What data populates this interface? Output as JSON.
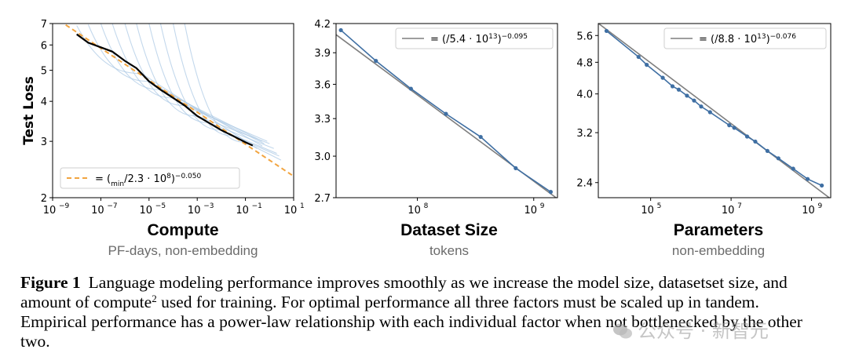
{
  "chart_data": [
    {
      "type": "line",
      "id": "compute",
      "title": "Compute",
      "subtitle": "PF-days, non-embedding",
      "xlabel": "Compute",
      "ylabel": "Test Loss",
      "xscale": "log",
      "yscale": "log",
      "xlim": [
        1e-09,
        10
      ],
      "ylim": [
        2,
        7
      ],
      "x_ticks": [
        1e-09,
        1e-07,
        1e-05,
        0.001,
        0.1,
        10
      ],
      "x_tick_labels": [
        "10",
        "10",
        "10",
        "10",
        "10",
        "10"
      ],
      "x_tick_exponents": [
        "−9",
        "−7",
        "−5",
        "−3",
        "−1",
        "1"
      ],
      "y_ticks": [
        2,
        3,
        4,
        5,
        6,
        7
      ],
      "y_tick_labels": [
        "2",
        "3",
        "4",
        "5",
        "6",
        "7"
      ],
      "legend": "bottom-left",
      "fit": {
        "label_html": "<i>L</i> = (<i>C</i><tspan baseline-shift='sub' font-size='9'>min</tspan>/2.3 · 10<tspan baseline-shift='super' font-size='9'>8</tspan>)<tspan baseline-shift='super' font-size='9'>−0.050</tspan>",
        "scale": 230000000.0,
        "exponent": -0.05,
        "color": "#f2a541"
      },
      "frontier": {
        "color": "#000000",
        "points": [
          [
            1e-08,
            6.48
          ],
          [
            3e-08,
            6.1
          ],
          [
            1e-07,
            5.9
          ],
          [
            3e-07,
            5.72
          ],
          [
            1e-06,
            5.35
          ],
          [
            3e-06,
            5.08
          ],
          [
            1e-05,
            4.62
          ],
          [
            3e-05,
            4.35
          ],
          [
            0.0001,
            4.1
          ],
          [
            0.0003,
            3.88
          ],
          [
            0.001,
            3.6
          ],
          [
            0.003,
            3.43
          ],
          [
            0.01,
            3.25
          ],
          [
            0.03,
            3.12
          ],
          [
            0.1,
            2.98
          ],
          [
            0.2,
            2.91
          ]
        ]
      },
      "curves_color": "#a9c7e4",
      "curves": [
        {
          "start": [
            1e-08,
            6.9
          ],
          "frontier_end": 5e-06,
          "end": [
            0.3,
            2.85
          ]
        },
        {
          "start": [
            3e-08,
            6.95
          ],
          "frontier_end": 1e-05,
          "end": [
            0.5,
            2.9
          ]
        },
        {
          "start": [
            1e-07,
            7.0
          ],
          "frontier_end": 3e-05,
          "end": [
            0.5,
            3.0
          ]
        },
        {
          "start": [
            3e-07,
            7.0
          ],
          "frontier_end": 0.0001,
          "end": [
            0.6,
            2.95
          ]
        },
        {
          "start": [
            1e-06,
            7.0
          ],
          "frontier_end": 0.0003,
          "end": [
            0.8,
            3.0
          ]
        },
        {
          "start": [
            3e-06,
            7.0
          ],
          "frontier_end": 0.001,
          "end": [
            1.0,
            2.95
          ]
        },
        {
          "start": [
            1e-05,
            7.0
          ],
          "frontier_end": 0.003,
          "end": [
            1.5,
            2.85
          ]
        },
        {
          "start": [
            3e-05,
            7.0
          ],
          "frontier_end": 0.01,
          "end": [
            2.0,
            2.75
          ]
        },
        {
          "start": [
            0.0001,
            7.0
          ],
          "frontier_end": 0.03,
          "end": [
            2.5,
            2.7
          ]
        },
        {
          "start": [
            0.0003,
            7.0
          ],
          "frontier_end": 0.1,
          "end": [
            3.0,
            2.62
          ]
        }
      ]
    },
    {
      "type": "line",
      "id": "dataset",
      "title": "Dataset Size",
      "subtitle": "tokens",
      "xscale": "log",
      "yscale": "log",
      "xlim": [
        20000000.0,
        1600000000.0
      ],
      "ylim": [
        2.7,
        4.2
      ],
      "x_ticks": [
        100000000.0,
        1000000000.0
      ],
      "x_tick_labels": [
        "10",
        "10"
      ],
      "x_tick_exponents": [
        "8",
        "9"
      ],
      "y_ticks": [
        2.7,
        3.0,
        3.3,
        3.6,
        3.9,
        4.2
      ],
      "y_tick_labels": [
        "2.7",
        "3.0",
        "3.3",
        "3.6",
        "3.9",
        "4.2"
      ],
      "legend": "top-right",
      "fit": {
        "label_html": "<i>L</i> = (<i>D</i>/5.4 · 10<tspan baseline-shift='super' font-size='9'>13</tspan>)<tspan baseline-shift='super' font-size='9'>−0.095</tspan>",
        "scale": 54000000000000.0,
        "exponent": -0.095,
        "color": "#7f7f7f"
      },
      "series": [
        {
          "color": "#3f6fa3",
          "points": [
            [
              22000000.0,
              4.13
            ],
            [
              44000000.0,
              3.82
            ],
            [
              88000000.0,
              3.56
            ],
            [
              176000000.0,
              3.34
            ],
            [
              350000000.0,
              3.15
            ],
            [
              700000000.0,
              2.91
            ],
            [
              1400000000.0,
              2.74
            ]
          ]
        }
      ]
    },
    {
      "type": "line",
      "id": "parameters",
      "title": "Parameters",
      "subtitle": "non-embedding",
      "xscale": "log",
      "yscale": "log",
      "xlim": [
        5000.0,
        3000000000.0
      ],
      "ylim": [
        2.2,
        6.0
      ],
      "x_ticks": [
        100000.0,
        10000000.0,
        1000000000.0
      ],
      "x_tick_labels": [
        "10",
        "10",
        "10"
      ],
      "x_tick_exponents": [
        "5",
        "7",
        "9"
      ],
      "y_ticks": [
        2.4,
        3.2,
        4.0,
        4.8,
        5.6
      ],
      "y_tick_labels": [
        "2.4",
        "3.2",
        "4.0",
        "4.8",
        "5.6"
      ],
      "legend": "top-right",
      "fit": {
        "label_html": "<i>L</i> = (<i>N</i>/8.8 · 10<tspan baseline-shift='super' font-size='9'>13</tspan>)<tspan baseline-shift='super' font-size='9'>−0.076</tspan>",
        "scale": 88000000000000.0,
        "exponent": -0.076,
        "color": "#7f7f7f"
      },
      "series": [
        {
          "color": "#3f6fa3",
          "points": [
            [
              8000.0,
              5.75
            ],
            [
              50000.0,
              4.95
            ],
            [
              80000.0,
              4.73
            ],
            [
              200000.0,
              4.39
            ],
            [
              350000.0,
              4.18
            ],
            [
              500000.0,
              4.1
            ],
            [
              800000.0,
              3.96
            ],
            [
              1200000.0,
              3.85
            ],
            [
              1800000.0,
              3.72
            ],
            [
              3000000.0,
              3.6
            ],
            [
              9000000.0,
              3.34
            ],
            [
              12000000.0,
              3.29
            ],
            [
              25000000.0,
              3.13
            ],
            [
              40000000.0,
              3.04
            ],
            [
              80000000.0,
              2.88
            ],
            [
              150000000.0,
              2.76
            ],
            [
              350000000.0,
              2.6
            ],
            [
              800000000.0,
              2.45
            ],
            [
              1800000000.0,
              2.36
            ]
          ]
        }
      ]
    }
  ],
  "caption": {
    "label": "Figure 1",
    "text_1": "Language modeling performance improves smoothly as we increase the model size, datasetset size, and amount of compute",
    "footnote_mark": "2",
    "text_2": " used for training. For optimal performance all three factors must be scaled up in tandem. Empirical performance has a power-law relationship with each individual factor when not bottlenecked by the other two."
  },
  "watermark": {
    "text": "公众号 · 新智元",
    "icon": "wechat-icon"
  }
}
